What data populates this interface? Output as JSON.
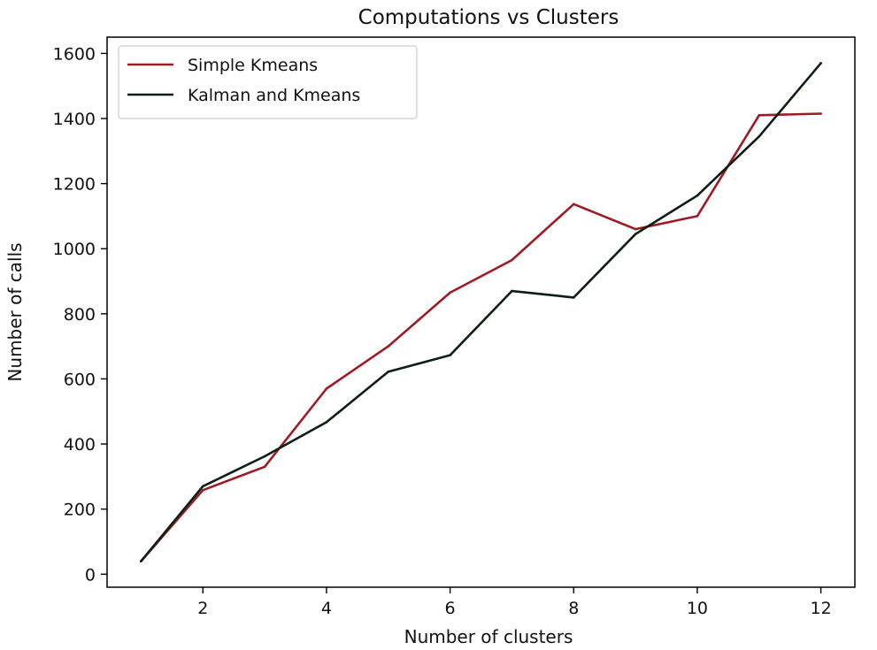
{
  "chart_data": {
    "type": "line",
    "title": "Computations vs Clusters",
    "xlabel": "Number of clusters",
    "ylabel": "Number of calls",
    "xlim": [
      0.45,
      12.55
    ],
    "ylim": [
      -40,
      1650
    ],
    "x_ticks": [
      "2",
      "4",
      "6",
      "8",
      "10",
      "12"
    ],
    "y_ticks": [
      "0",
      "200",
      "400",
      "600",
      "800",
      "1000",
      "1200",
      "1400",
      "1600"
    ],
    "grid": false,
    "legend": "top-left",
    "x": [
      1,
      2,
      3,
      4,
      5,
      6,
      7,
      8,
      9,
      10,
      11,
      12
    ],
    "series": [
      {
        "name": "Simple Kmeans",
        "color": "#9e1b24",
        "values": [
          40,
          258,
          330,
          570,
          700,
          865,
          965,
          1137,
          1060,
          1100,
          1410,
          1415
        ]
      },
      {
        "name": "Kalman and Kmeans",
        "color": "#0b1f12",
        "values": [
          40,
          270,
          362,
          467,
          622,
          673,
          870,
          850,
          1045,
          1163,
          1345,
          1570
        ]
      }
    ]
  }
}
